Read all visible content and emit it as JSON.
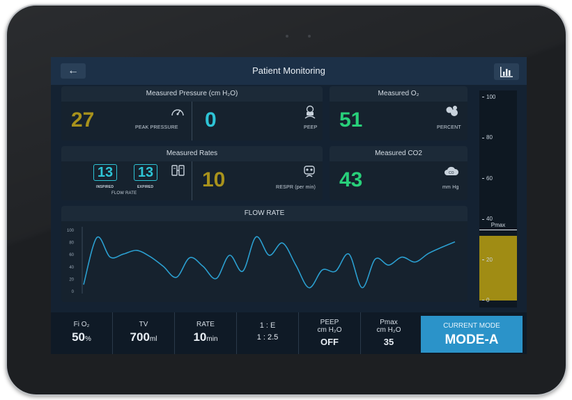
{
  "header": {
    "title": "Patient Monitoring",
    "back_icon": "arrow-left-icon",
    "chart_icon": "bar-chart-icon"
  },
  "pressure": {
    "title": "Measured Pressure (cm H₂O)",
    "peak": {
      "value": "27",
      "label": "PEAK PRESSURE",
      "color": "#a8921c"
    },
    "peep": {
      "value": "0",
      "label": "PEEP",
      "color": "#2ec4d6"
    }
  },
  "o2": {
    "title": "Measured O₂",
    "value": "51",
    "label": "PERCENT",
    "color": "#28d07a"
  },
  "rates": {
    "title": "Measured Rates",
    "inspired": {
      "value": "13",
      "label": "INSPIRED"
    },
    "expired": {
      "value": "13",
      "label": "EXPIRED"
    },
    "flow_label": "FLOW RATE",
    "respr": {
      "value": "10",
      "label": "RESPR (per min)",
      "color": "#a8921c"
    }
  },
  "co2": {
    "title": "Measured CO2",
    "value": "43",
    "label": "mm Hg",
    "color": "#28d07a"
  },
  "flow_chart": {
    "title": "FLOW RATE",
    "chart_data": {
      "type": "line",
      "yticks": [
        "100",
        "80",
        "60",
        "40",
        "20",
        "0"
      ],
      "ylim": [
        0,
        100
      ],
      "values": [
        10,
        87,
        55,
        60,
        66,
        56,
        40,
        22,
        54,
        40,
        20,
        58,
        32,
        88,
        58,
        78,
        42,
        5,
        34,
        32,
        60,
        5,
        52,
        42,
        55,
        47,
        61,
        71,
        80
      ],
      "grid": false,
      "color": "#2b9fd0"
    }
  },
  "gauge": {
    "ticks": [
      "100",
      "80",
      "60",
      "40",
      "20",
      "0"
    ],
    "level": 32,
    "pmax": 35,
    "pmax_label": "Pmax",
    "color": "#a08c14"
  },
  "bottom": {
    "fio2": {
      "label": "Fi O₂",
      "value": "50",
      "unit": "%"
    },
    "tv": {
      "label": "TV",
      "value": "700",
      "unit": "ml"
    },
    "rate": {
      "label": "RATE",
      "value": "10",
      "unit": "min"
    },
    "ie": {
      "label": "1 : E",
      "value": "1 : 2.5"
    },
    "peep": {
      "label1": "PEEP",
      "label2": "cm H₂O",
      "value": "OFF"
    },
    "pmax": {
      "label1": "Pmax",
      "label2": "cm H₂O",
      "value": "35"
    },
    "mode": {
      "label": "CURRENT MODE",
      "value": "MODE-A"
    }
  }
}
